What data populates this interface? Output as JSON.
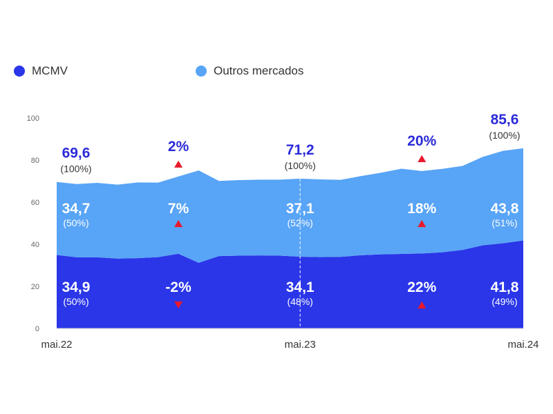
{
  "legend": {
    "items": [
      {
        "label": "MCMV",
        "color": "#2a36e8"
      },
      {
        "label": "Outros mercados",
        "color": "#58a4f6"
      }
    ]
  },
  "chart_data": {
    "type": "area",
    "stacked": true,
    "yticks": [
      0,
      20,
      40,
      60,
      80,
      100
    ],
    "ylim": [
      0,
      100
    ],
    "x_tick_labels": [
      "mai.22",
      "mai.23",
      "mai.24"
    ],
    "series": [
      {
        "name": "MCMV",
        "color": "#2a36e8",
        "values": [
          34.9,
          33.8,
          33.8,
          33.2,
          33.4,
          33.9,
          35.5,
          31.2,
          34.4,
          34.6,
          34.7,
          34.6,
          34.1,
          33.9,
          34.0,
          34.8,
          35.2,
          35.4,
          35.6,
          36.2,
          37.3,
          39.5,
          40.5,
          41.8
        ]
      },
      {
        "name": "Outros mercados",
        "color": "#58a4f6",
        "values": [
          34.7,
          34.8,
          35.4,
          35.1,
          36.0,
          35.4,
          36.7,
          43.9,
          35.7,
          35.9,
          36.0,
          36.1,
          37.1,
          36.9,
          36.6,
          37.6,
          38.8,
          40.5,
          39.2,
          39.6,
          39.9,
          42.0,
          43.9,
          43.8
        ]
      }
    ],
    "divider_at_index": 12,
    "annotations": {
      "mcmv": [
        {
          "index": 0,
          "value": "34,9",
          "share": "(50%)"
        },
        {
          "index": 6,
          "value": "-2%",
          "trend": "down"
        },
        {
          "index": 12,
          "value": "34,1",
          "share": "(48%)"
        },
        {
          "index": 18,
          "value": "22%",
          "trend": "up"
        },
        {
          "index": 23,
          "value": "41,8",
          "share": "(49%)"
        }
      ],
      "outros": [
        {
          "index": 0,
          "value": "34,7",
          "share": "(50%)"
        },
        {
          "index": 6,
          "value": "7%",
          "trend": "up"
        },
        {
          "index": 12,
          "value": "37,1",
          "share": "(52%)"
        },
        {
          "index": 18,
          "value": "18%",
          "trend": "up"
        },
        {
          "index": 23,
          "value": "43,8",
          "share": "(51%)"
        }
      ],
      "total": [
        {
          "index": 0,
          "value": "69,6",
          "share": "(100%)"
        },
        {
          "index": 6,
          "value": "2%",
          "trend": "up"
        },
        {
          "index": 12,
          "value": "71,2",
          "share": "(100%)"
        },
        {
          "index": 18,
          "value": "20%",
          "trend": "up"
        },
        {
          "index": 23,
          "value": "85,6",
          "share": "(100%)"
        }
      ]
    }
  }
}
